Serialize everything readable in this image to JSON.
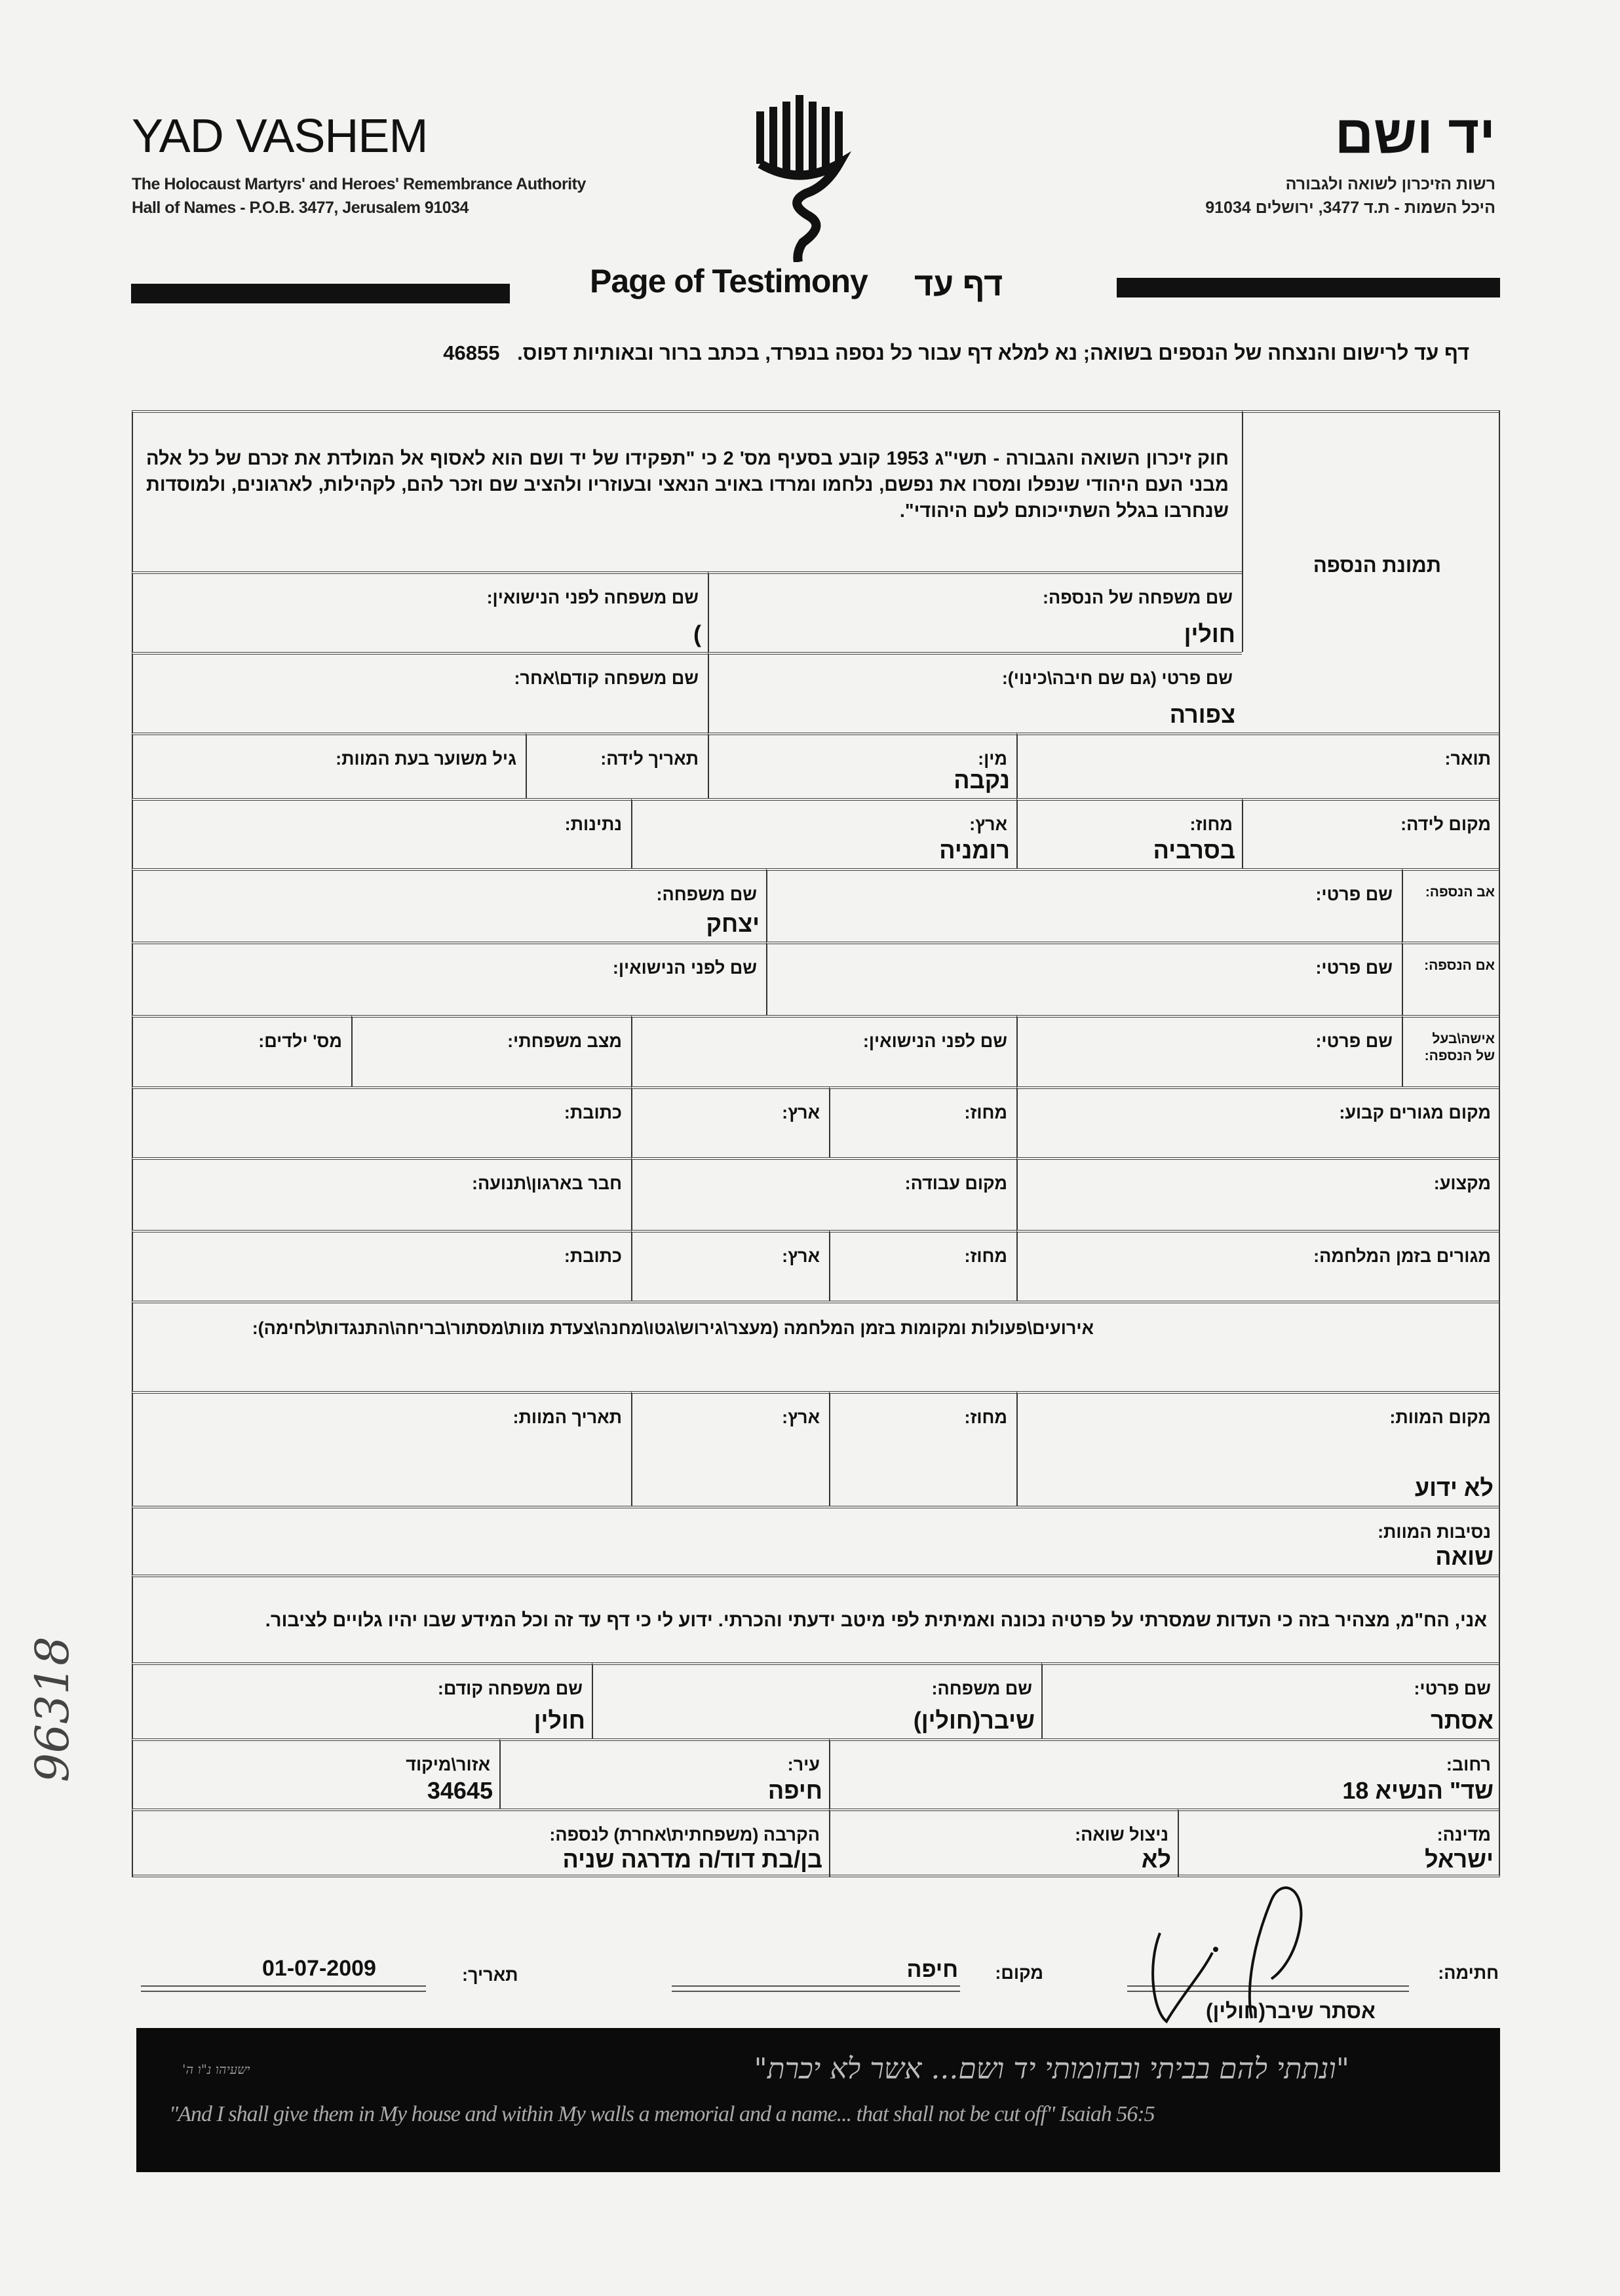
{
  "header": {
    "org_en": "YAD VASHEM",
    "subtitle_en": "The Holocaust Martyrs' and Heroes' Remembrance Authority",
    "address_en": "Hall of Names - P.O.B. 3477, Jerusalem 91034",
    "org_he": "יד ושם",
    "subtitle_he": "רשות הזיכרון לשואה ולגבורה",
    "address_he": "היכל השמות - ת.ד 3477, ירושלים 91034",
    "title_en": "Page of Testimony",
    "title_he": "דף עד",
    "instructions": "דף עד לרישום והנצחה של הנספים בשואה; נא למלא דף עבור כל נספה בנפרד, בכתב ברור ובאותיות דפוס.",
    "form_number": "46855",
    "logo": "yad-vashem-menorah-logo"
  },
  "intro": {
    "law_text": "חוק זיכרון השואה והגבורה - תשי\"ג 1953 קובע בסעיף מס' 2 כי \"תפקידו של יד ושם הוא לאסוף אל המולדת את זכרם של כל אלה מבני העם היהודי שנפלו ומסרו את נפשם, נלחמו ומרדו באויב הנאצי ובעוזריו ולהציב שם וזכר להם, לקהילות, לארגונים, ולמוסדות שנחרבו בגלל השתייכותם לעם היהודי\".",
    "photo_label": "תמונת הנספה"
  },
  "victim": {
    "family_name": {
      "label": "שם משפחה של הנספה:",
      "value": "חולין"
    },
    "maiden_name": {
      "label": "שם משפחה לפני הנישואין:",
      "value": ")"
    },
    "first_name": {
      "label": "שם פרטי (גם שם חיבה\\כינוי):",
      "value": "צפורה"
    },
    "previous_name": {
      "label": "שם משפחה קודם\\אחר:",
      "value": ""
    },
    "title": {
      "label": "תואר:",
      "value": ""
    },
    "gender": {
      "label": "מין:",
      "value": "נקבה"
    },
    "birth_date": {
      "label": "תאריך לידה:",
      "value": ""
    },
    "age_at_death": {
      "label": "גיל משוער בעת המוות:",
      "value": ""
    },
    "birth_place": {
      "label": "מקום לידה:",
      "value": ""
    },
    "birth_region": {
      "label": "מחוז:",
      "value": "בסרביה"
    },
    "birth_country": {
      "label": "ארץ:",
      "value": "רומניה"
    },
    "nationality": {
      "label": "נתינות:",
      "value": ""
    },
    "father_label": "אב הנספה:",
    "father_first": {
      "label": "שם פרטי:",
      "value": ""
    },
    "father_family": {
      "label": "שם משפחה:",
      "value": "יצחק"
    },
    "mother_label": "אם הנספה:",
    "mother_first": {
      "label": "שם פרטי:",
      "value": ""
    },
    "mother_maiden": {
      "label": "שם לפני הנישואין:",
      "value": ""
    },
    "spouse_label": "אישה\\בעל של הנספה:",
    "spouse_first": {
      "label": "שם פרטי:",
      "value": ""
    },
    "spouse_maiden": {
      "label": "שם לפני הנישואין:",
      "value": ""
    },
    "marital_status": {
      "label": "מצב משפחתי:",
      "value": ""
    },
    "children": {
      "label": "מס' ילדים:",
      "value": ""
    },
    "residence": {
      "label": "מקום מגורים קבוע:",
      "value": ""
    },
    "residence_region": {
      "label": "מחוז:",
      "value": ""
    },
    "residence_country": {
      "label": "ארץ:",
      "value": ""
    },
    "residence_address": {
      "label": "כתובת:",
      "value": ""
    },
    "profession": {
      "label": "מקצוע:",
      "value": ""
    },
    "workplace": {
      "label": "מקום עבודה:",
      "value": ""
    },
    "organization": {
      "label": "חבר בארגון\\תנועה:",
      "value": ""
    },
    "wartime_residence": {
      "label": "מגורים בזמן המלחמה:",
      "value": ""
    },
    "wartime_region": {
      "label": "מחוז:",
      "value": ""
    },
    "wartime_country": {
      "label": "ארץ:",
      "value": ""
    },
    "wartime_address": {
      "label": "כתובת:",
      "value": ""
    },
    "wartime_events": {
      "label": "אירועים\\פעולות ומקומות בזמן המלחמה (מעצר\\גירוש\\גטו\\מחנה\\צעדת מוות\\מסתור\\בריחה\\התנגדות\\לחימה):",
      "value": ""
    },
    "death_place": {
      "label": "מקום המוות:",
      "value": "לא ידוע"
    },
    "death_region": {
      "label": "מחוז:",
      "value": ""
    },
    "death_country": {
      "label": "ארץ:",
      "value": ""
    },
    "death_date": {
      "label": "תאריך המוות:",
      "value": ""
    },
    "death_circumstances": {
      "label": "נסיבות המוות:",
      "value": "שואה"
    }
  },
  "submitter": {
    "declaration": "אני, הח\"מ, מצהיר בזה כי העדות שמסרתי על פרטיה נכונה ואמיתית לפי מיטב ידעתי והכרתי. ידוע לי כי דף עד זה וכל המידע שבו יהיו גלויים לציבור.",
    "first_name": {
      "label": "שם פרטי:",
      "value": "אסתר"
    },
    "family_name": {
      "label": "שם משפחה:",
      "value": "שיבר(חולין)"
    },
    "previous_name": {
      "label": "שם משפחה קודם:",
      "value": "חולין"
    },
    "street": {
      "label": "רחוב:",
      "value": "שד\" הנשיא 18"
    },
    "city": {
      "label": "עיר:",
      "value": "חיפה"
    },
    "zip": {
      "label": "אזור\\מיקוד",
      "value": "34645"
    },
    "country": {
      "label": "מדינה:",
      "value": "ישראל"
    },
    "survivor": {
      "label": "ניצול שואה:",
      "value": "לא"
    },
    "relation": {
      "label": "הקרבה (משפחתית\\אחרת) לנספה:",
      "value": "בן/בת דוד/ה מדרגה שניה"
    }
  },
  "signature": {
    "signature_label": "חתימה:",
    "signer_name": "אסתר שיבר(חולין)",
    "place_label": "מקום:",
    "place_value": "חיפה",
    "date_label": "תאריך:",
    "date_value": "01-07-2009"
  },
  "footer": {
    "quote_he": "\"ונתתי להם בביתי ובחומותי יד ושם... אשר לא יכרת\"",
    "quote_he_ref": "ישעיהו נ\"ו ה'",
    "quote_en": "\"And I shall give them in My house and within My walls a memorial and a name... that shall not be cut off\" Isaiah 56:5"
  },
  "margin_note": "96318"
}
